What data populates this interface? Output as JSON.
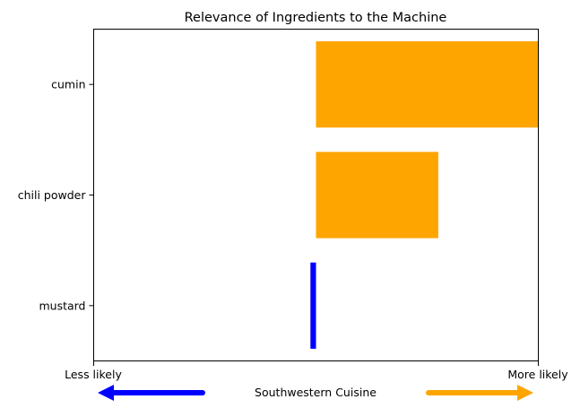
{
  "chart_data": {
    "type": "bar",
    "orientation": "horizontal",
    "title": "Relevance of Ingredients to the Machine",
    "categories": [
      "cumin",
      "chili powder",
      "mustard"
    ],
    "values": [
      1.0,
      0.55,
      -0.025
    ],
    "xlim": [
      -1.0,
      1.0
    ],
    "positive_color": "#FFA500",
    "negative_color": "#0000FF",
    "x_tick_labels": {
      "min": "Less likely",
      "max": "More likely"
    },
    "footer": {
      "center_label": "Southwestern Cuisine",
      "left_arrow_color": "#0000FF",
      "right_arrow_color": "#FFA500"
    },
    "grid": false,
    "legend": "none"
  }
}
